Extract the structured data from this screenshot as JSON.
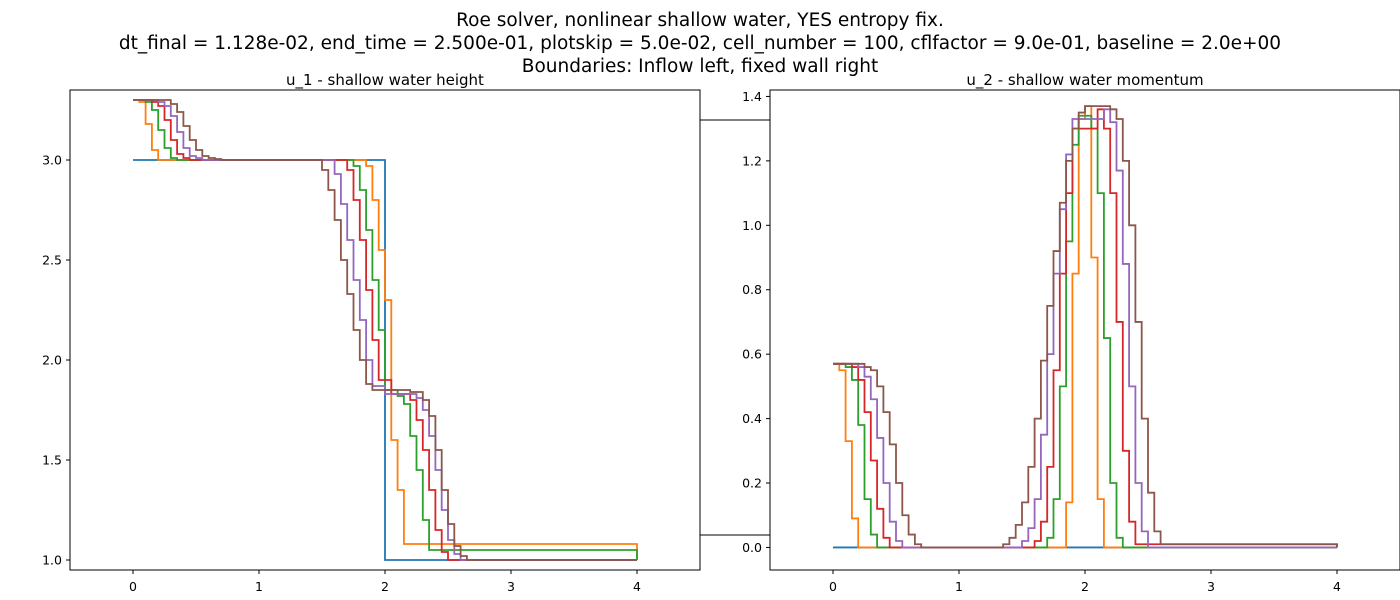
{
  "figure": {
    "title_lines": [
      "Roe solver, nonlinear shallow water, YES entropy fix.",
      "dt_final = 1.128e-02, end_time = 2.500e-01, plotskip = 5.0e-02, cell_number = 100, cflfactor = 9.0e-01, baseline = 2.0e+00",
      "Boundaries:  Inflow left, fixed wall right"
    ]
  },
  "chart_data": [
    {
      "type": "line",
      "step": true,
      "title": "u_1 - shallow water height",
      "xlabel": "",
      "ylabel": "",
      "xlim": [
        -0.5,
        4.5
      ],
      "ylim": [
        0.95,
        3.35
      ],
      "xticks": [
        "0",
        "1",
        "2",
        "3",
        "4"
      ],
      "yticks": [
        "1.0",
        "1.5",
        "2.0",
        "2.5",
        "3.0"
      ],
      "grid": false,
      "legend": "none",
      "series": [
        {
          "color": "#1f77b4",
          "x": [
            0,
            2,
            2,
            4
          ],
          "y": [
            3.0,
            3.0,
            1.0,
            1.0
          ]
        },
        {
          "color": "#ff7f0e",
          "x": [
            0,
            0.05,
            0.1,
            0.15,
            0.2,
            1.8,
            1.85,
            1.9,
            1.95,
            2.0,
            2.05,
            2.1,
            2.15,
            4.0
          ],
          "y": [
            3.3,
            3.29,
            3.18,
            3.05,
            3.0,
            3.0,
            2.97,
            2.8,
            2.55,
            2.3,
            1.6,
            1.35,
            1.08,
            1.0
          ]
        },
        {
          "color": "#2ca02c",
          "x": [
            0,
            0.1,
            0.15,
            0.2,
            0.25,
            0.3,
            0.35,
            1.7,
            1.75,
            1.8,
            1.85,
            1.9,
            1.95,
            2.0,
            2.1,
            2.15,
            2.2,
            2.25,
            2.3,
            2.35,
            4.0
          ],
          "y": [
            3.3,
            3.29,
            3.25,
            3.15,
            3.06,
            3.01,
            3.0,
            3.0,
            2.97,
            2.85,
            2.65,
            2.4,
            2.15,
            1.85,
            1.82,
            1.78,
            1.62,
            1.45,
            1.2,
            1.05,
            1.0
          ]
        },
        {
          "color": "#d62728",
          "x": [
            0,
            0.15,
            0.2,
            0.25,
            0.3,
            0.35,
            0.4,
            0.45,
            1.65,
            1.7,
            1.75,
            1.8,
            1.85,
            1.9,
            1.95,
            2.05,
            2.15,
            2.2,
            2.25,
            2.3,
            2.35,
            2.4,
            2.45,
            2.5,
            4.0
          ],
          "y": [
            3.3,
            3.29,
            3.27,
            3.2,
            3.1,
            3.03,
            3.01,
            3.0,
            3.0,
            2.95,
            2.8,
            2.6,
            2.35,
            2.1,
            1.9,
            1.83,
            1.83,
            1.8,
            1.7,
            1.55,
            1.35,
            1.15,
            1.04,
            1.0,
            1.0
          ]
        },
        {
          "color": "#9467bd",
          "x": [
            0,
            0.2,
            0.25,
            0.3,
            0.35,
            0.4,
            0.45,
            0.5,
            0.55,
            1.55,
            1.6,
            1.65,
            1.7,
            1.75,
            1.8,
            1.85,
            1.9,
            2.0,
            2.2,
            2.25,
            2.3,
            2.35,
            2.4,
            2.45,
            2.5,
            2.55,
            2.6,
            4.0
          ],
          "y": [
            3.3,
            3.29,
            3.27,
            3.22,
            3.14,
            3.06,
            3.02,
            3.01,
            3.0,
            3.0,
            2.93,
            2.78,
            2.6,
            2.4,
            2.2,
            2.0,
            1.87,
            1.83,
            1.83,
            1.81,
            1.75,
            1.62,
            1.45,
            1.25,
            1.1,
            1.03,
            1.0,
            1.0
          ]
        },
        {
          "color": "#8c564b",
          "x": [
            0,
            0.25,
            0.3,
            0.35,
            0.4,
            0.45,
            0.5,
            0.55,
            0.6,
            0.65,
            0.7,
            1.45,
            1.5,
            1.55,
            1.6,
            1.65,
            1.7,
            1.75,
            1.8,
            1.85,
            1.9,
            2.2,
            2.3,
            2.35,
            2.4,
            2.45,
            2.5,
            2.55,
            2.6,
            2.65,
            4.0
          ],
          "y": [
            3.3,
            3.3,
            3.28,
            3.24,
            3.17,
            3.1,
            3.05,
            3.02,
            3.01,
            3.005,
            3.0,
            3.0,
            2.95,
            2.85,
            2.7,
            2.5,
            2.33,
            2.15,
            2.0,
            1.88,
            1.85,
            1.84,
            1.8,
            1.72,
            1.55,
            1.35,
            1.18,
            1.07,
            1.02,
            1.0,
            1.0
          ]
        }
      ]
    },
    {
      "type": "line",
      "step": true,
      "title": "u_2 - shallow water momentum",
      "xlabel": "",
      "ylabel": "",
      "xlim": [
        -0.5,
        4.5
      ],
      "ylim": [
        -0.07,
        1.42
      ],
      "xticks": [
        "0",
        "1",
        "2",
        "3",
        "4"
      ],
      "yticks": [
        "0.0",
        "0.2",
        "0.4",
        "0.6",
        "0.8",
        "1.0",
        "1.2",
        "1.4"
      ],
      "grid": false,
      "legend": "none",
      "series": [
        {
          "color": "#1f77b4",
          "x": [
            0,
            4
          ],
          "y": [
            0.0,
            0.0
          ]
        },
        {
          "color": "#ff7f0e",
          "x": [
            0,
            0.05,
            0.1,
            0.15,
            0.2,
            1.8,
            1.85,
            1.9,
            1.95,
            2.0,
            2.05,
            2.1,
            2.15,
            4.0
          ],
          "y": [
            0.57,
            0.55,
            0.33,
            0.09,
            0.0,
            0.0,
            0.14,
            0.85,
            1.33,
            1.37,
            0.9,
            0.15,
            0.0,
            0.0
          ]
        },
        {
          "color": "#2ca02c",
          "x": [
            0,
            0.1,
            0.15,
            0.2,
            0.25,
            0.3,
            0.35,
            1.65,
            1.7,
            1.75,
            1.8,
            1.85,
            1.9,
            1.95,
            2.05,
            2.1,
            2.15,
            2.2,
            2.25,
            2.3,
            4.0
          ],
          "y": [
            0.57,
            0.56,
            0.52,
            0.38,
            0.15,
            0.04,
            0.0,
            0.0,
            0.03,
            0.15,
            0.5,
            0.95,
            1.25,
            1.34,
            1.3,
            1.1,
            0.65,
            0.2,
            0.03,
            0.0,
            0.0
          ]
        },
        {
          "color": "#d62728",
          "x": [
            0,
            0.15,
            0.2,
            0.25,
            0.3,
            0.35,
            0.4,
            0.45,
            1.55,
            1.6,
            1.65,
            1.7,
            1.75,
            1.8,
            1.85,
            1.9,
            2.1,
            2.15,
            2.2,
            2.25,
            2.3,
            2.35,
            2.4,
            4.0
          ],
          "y": [
            0.57,
            0.56,
            0.52,
            0.42,
            0.27,
            0.12,
            0.03,
            0.0,
            0.0,
            0.02,
            0.08,
            0.25,
            0.55,
            0.85,
            1.1,
            1.3,
            1.36,
            1.3,
            1.1,
            0.7,
            0.3,
            0.08,
            0.01,
            0.0
          ]
        },
        {
          "color": "#9467bd",
          "x": [
            0,
            0.2,
            0.25,
            0.3,
            0.35,
            0.4,
            0.45,
            0.5,
            0.55,
            1.45,
            1.5,
            1.55,
            1.6,
            1.65,
            1.7,
            1.75,
            1.8,
            1.85,
            1.9,
            2.15,
            2.2,
            2.25,
            2.3,
            2.35,
            2.4,
            2.45,
            2.5,
            4.0
          ],
          "y": [
            0.57,
            0.56,
            0.53,
            0.46,
            0.34,
            0.2,
            0.08,
            0.02,
            0.0,
            0.0,
            0.02,
            0.06,
            0.15,
            0.35,
            0.6,
            0.85,
            1.05,
            1.22,
            1.33,
            1.36,
            1.32,
            1.17,
            0.88,
            0.5,
            0.2,
            0.05,
            0.0,
            0.0
          ]
        },
        {
          "color": "#8c564b",
          "x": [
            0,
            0.25,
            0.3,
            0.35,
            0.4,
            0.45,
            0.5,
            0.55,
            0.6,
            0.65,
            0.7,
            1.3,
            1.35,
            1.4,
            1.45,
            1.5,
            1.55,
            1.6,
            1.65,
            1.7,
            1.75,
            1.8,
            1.85,
            1.9,
            1.95,
            2.0,
            2.2,
            2.25,
            2.3,
            2.35,
            2.4,
            2.45,
            2.5,
            2.55,
            2.6,
            4.0
          ],
          "y": [
            0.57,
            0.56,
            0.55,
            0.5,
            0.42,
            0.32,
            0.2,
            0.1,
            0.04,
            0.01,
            0.0,
            0.0,
            0.01,
            0.03,
            0.07,
            0.14,
            0.25,
            0.4,
            0.58,
            0.75,
            0.92,
            1.07,
            1.2,
            1.3,
            1.35,
            1.37,
            1.36,
            1.33,
            1.2,
            1.0,
            0.7,
            0.4,
            0.17,
            0.05,
            0.01,
            0.0
          ]
        }
      ]
    }
  ]
}
